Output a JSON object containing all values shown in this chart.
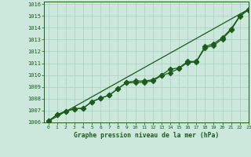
{
  "title": "Graphe pression niveau de la mer (hPa)",
  "bg_color": "#cce8dd",
  "grid_color": "#a8cfc0",
  "line_color": "#1a5c1a",
  "xlim": [
    -0.5,
    23
  ],
  "ylim": [
    1006,
    1016.2
  ],
  "xticks": [
    0,
    1,
    2,
    3,
    4,
    5,
    6,
    7,
    8,
    9,
    10,
    11,
    12,
    13,
    14,
    15,
    16,
    17,
    18,
    19,
    20,
    21,
    22,
    23
  ],
  "yticks": [
    1006,
    1007,
    1008,
    1009,
    1010,
    1011,
    1012,
    1013,
    1014,
    1015,
    1016
  ],
  "series1": [
    1006.1,
    1006.65,
    1006.95,
    1007.15,
    1007.2,
    1007.75,
    1008.05,
    1008.3,
    1008.85,
    1009.35,
    1009.35,
    1009.4,
    1009.5,
    1009.95,
    1010.2,
    1010.55,
    1011.05,
    1011.1,
    1012.3,
    1012.5,
    1013.05,
    1013.8,
    1014.95,
    1015.5
  ],
  "series2": [
    1006.1,
    1006.65,
    1006.95,
    1007.15,
    1007.2,
    1007.75,
    1008.05,
    1008.3,
    1008.85,
    1009.4,
    1009.5,
    1009.5,
    1009.6,
    1010.0,
    1010.5,
    1010.6,
    1011.15,
    1011.15,
    1012.4,
    1012.65,
    1013.15,
    1013.9,
    1015.0,
    1015.55
  ],
  "trend_x": [
    0,
    23
  ],
  "trend_y": [
    1006.1,
    1015.55
  ],
  "marker_size": 3.5,
  "linewidth": 0.9,
  "font_family": "monospace"
}
